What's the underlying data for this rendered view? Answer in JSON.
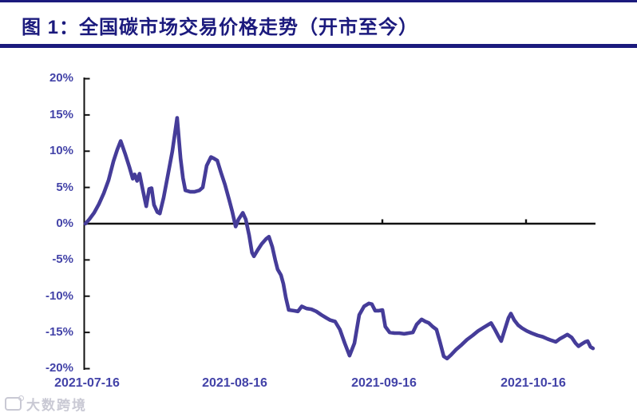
{
  "header": {
    "title": "图 1：全国碳市场交易价格走势（开市至今）"
  },
  "watermark": {
    "icon": "logo-badge",
    "text": "大数跨境"
  },
  "colors": {
    "accent": "#1b1a7d",
    "line": "#453c99",
    "axis": "#111111",
    "axis_label": "#4343a8",
    "watermark": "#c9c9d4"
  },
  "chart_data": {
    "type": "line",
    "title": "全国碳市场交易价格走势（开市至今）",
    "unit": "%",
    "grid": false,
    "legend": "none",
    "ylim": [
      -20,
      20
    ],
    "y_ticks": [
      "20%",
      "15%",
      "10%",
      "5%",
      "0%",
      "-5%",
      "-10%",
      "-15%",
      "-20%"
    ],
    "y_tick_values": [
      20,
      15,
      10,
      5,
      0,
      -5,
      -10,
      -15,
      -20
    ],
    "x_tick_labels": [
      "2021-07-16",
      "2021-08-16",
      "2021-09-16",
      "2021-10-16"
    ],
    "x_tick_days": [
      0,
      31,
      62,
      92
    ],
    "xlim_days": [
      0,
      106
    ],
    "points": [
      [
        0,
        0.0
      ],
      [
        0.8,
        0.6
      ],
      [
        1.8,
        1.5
      ],
      [
        2.8,
        2.7
      ],
      [
        3.8,
        4.2
      ],
      [
        4.8,
        6.0
      ],
      [
        5.8,
        8.6
      ],
      [
        6.6,
        10.2
      ],
      [
        7.3,
        11.4
      ],
      [
        8.3,
        9.5
      ],
      [
        9.1,
        7.8
      ],
      [
        9.8,
        6.2
      ],
      [
        10.2,
        6.8
      ],
      [
        10.7,
        5.9
      ],
      [
        11.2,
        6.9
      ],
      [
        11.9,
        4.6
      ],
      [
        12.6,
        2.4
      ],
      [
        13.2,
        4.8
      ],
      [
        13.7,
        4.9
      ],
      [
        14.2,
        2.6
      ],
      [
        14.9,
        1.6
      ],
      [
        15.4,
        1.4
      ],
      [
        16.2,
        3.6
      ],
      [
        17,
        6.4
      ],
      [
        18,
        10.0
      ],
      [
        19,
        14.6
      ],
      [
        19.7,
        9.0
      ],
      [
        20.2,
        6.3
      ],
      [
        20.7,
        4.6
      ],
      [
        21.7,
        4.4
      ],
      [
        22.6,
        4.4
      ],
      [
        23.6,
        4.6
      ],
      [
        24.3,
        5.0
      ],
      [
        25.1,
        8.0
      ],
      [
        26,
        9.2
      ],
      [
        26.6,
        9.0
      ],
      [
        27.3,
        8.7
      ],
      [
        28.1,
        7.0
      ],
      [
        28.9,
        5.4
      ],
      [
        29.8,
        3.2
      ],
      [
        30.4,
        1.7
      ],
      [
        31.1,
        -0.4
      ],
      [
        31.7,
        0.6
      ],
      [
        32.6,
        1.5
      ],
      [
        33.2,
        0.6
      ],
      [
        33.9,
        -1.6
      ],
      [
        34.5,
        -4.0
      ],
      [
        34.9,
        -4.5
      ],
      [
        35.7,
        -3.6
      ],
      [
        36.5,
        -2.8
      ],
      [
        37.4,
        -2.1
      ],
      [
        38,
        -1.8
      ],
      [
        38.7,
        -3.2
      ],
      [
        39.3,
        -5.0
      ],
      [
        39.8,
        -6.3
      ],
      [
        40.5,
        -7.1
      ],
      [
        41,
        -8.3
      ],
      [
        41.5,
        -10.2
      ],
      [
        42.1,
        -11.9
      ],
      [
        43.1,
        -12.0
      ],
      [
        44,
        -12.1
      ],
      [
        44.8,
        -11.4
      ],
      [
        45.8,
        -11.7
      ],
      [
        46.8,
        -11.8
      ],
      [
        47.8,
        -12.1
      ],
      [
        48.9,
        -12.6
      ],
      [
        49.9,
        -13.0
      ],
      [
        50.7,
        -13.3
      ],
      [
        51.7,
        -13.5
      ],
      [
        52.7,
        -14.6
      ],
      [
        53.7,
        -16.5
      ],
      [
        54.7,
        -18.2
      ],
      [
        55.7,
        -16.5
      ],
      [
        56.7,
        -12.6
      ],
      [
        57.7,
        -11.4
      ],
      [
        58.7,
        -11.0
      ],
      [
        59.3,
        -11.1
      ],
      [
        60,
        -12.0
      ],
      [
        60.8,
        -12.0
      ],
      [
        61.5,
        -11.9
      ],
      [
        62.1,
        -14.2
      ],
      [
        63,
        -15.0
      ],
      [
        64,
        -15.1
      ],
      [
        65,
        -15.1
      ],
      [
        66,
        -15.2
      ],
      [
        66.9,
        -15.1
      ],
      [
        67.8,
        -15.0
      ],
      [
        68.6,
        -13.9
      ],
      [
        69.6,
        -13.2
      ],
      [
        70.4,
        -13.5
      ],
      [
        71.1,
        -13.7
      ],
      [
        71.9,
        -14.2
      ],
      [
        72.7,
        -14.6
      ],
      [
        73.4,
        -16.3
      ],
      [
        74.2,
        -18.3
      ],
      [
        74.9,
        -18.6
      ],
      [
        75.7,
        -18.1
      ],
      [
        76.7,
        -17.4
      ],
      [
        77.9,
        -16.7
      ],
      [
        79,
        -16.0
      ],
      [
        80.2,
        -15.4
      ],
      [
        81.3,
        -14.8
      ],
      [
        82.5,
        -14.3
      ],
      [
        83.5,
        -13.9
      ],
      [
        84,
        -13.7
      ],
      [
        84.8,
        -14.6
      ],
      [
        85.5,
        -15.5
      ],
      [
        86.1,
        -16.2
      ],
      [
        86.9,
        -14.5
      ],
      [
        87.6,
        -13.0
      ],
      [
        88.1,
        -12.4
      ],
      [
        88.8,
        -13.3
      ],
      [
        89.6,
        -14.0
      ],
      [
        90.4,
        -14.4
      ],
      [
        91.4,
        -14.8
      ],
      [
        92.4,
        -15.1
      ],
      [
        93.6,
        -15.4
      ],
      [
        94.7,
        -15.6
      ],
      [
        95.7,
        -15.9
      ],
      [
        96.5,
        -16.1
      ],
      [
        97.4,
        -16.3
      ],
      [
        98.2,
        -15.9
      ],
      [
        99,
        -15.6
      ],
      [
        99.8,
        -15.3
      ],
      [
        100.7,
        -15.7
      ],
      [
        101.5,
        -16.5
      ],
      [
        102.1,
        -16.9
      ],
      [
        102.8,
        -16.6
      ],
      [
        103.5,
        -16.3
      ],
      [
        104,
        -16.2
      ],
      [
        104.6,
        -17.0
      ],
      [
        105.1,
        -17.2
      ]
    ]
  }
}
